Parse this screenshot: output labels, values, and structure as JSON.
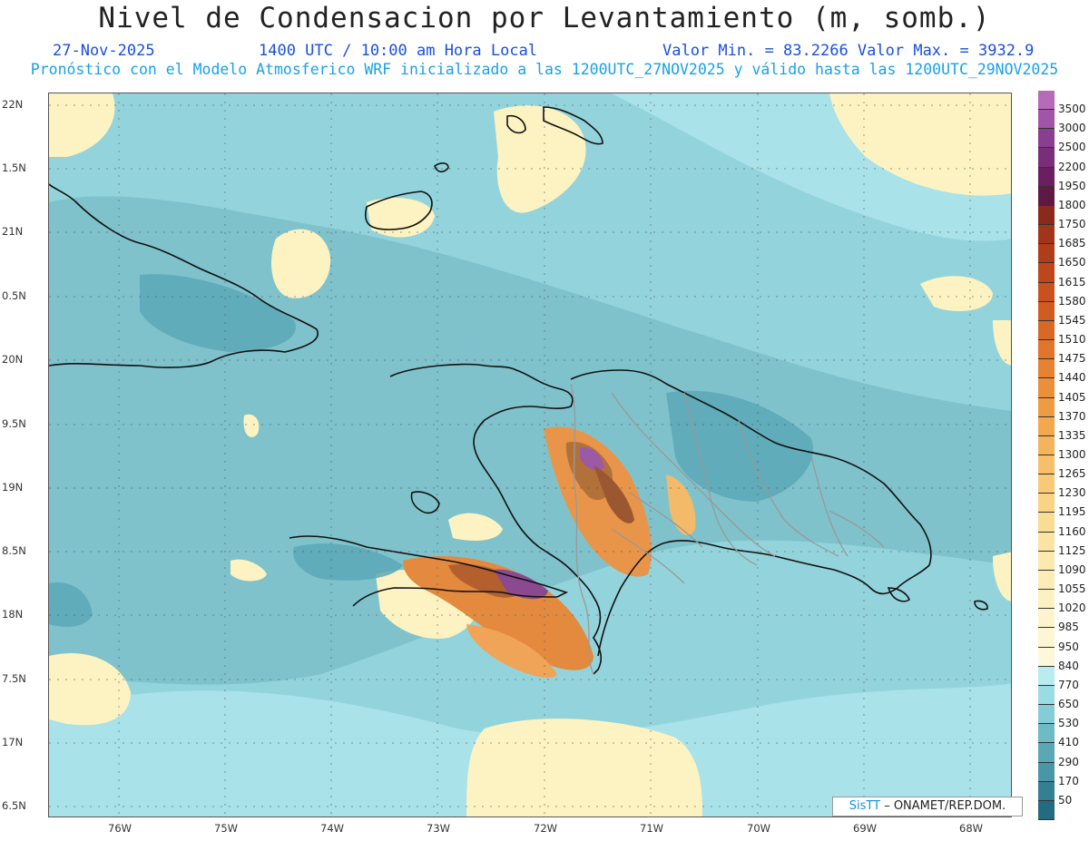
{
  "header": {
    "title": "Nivel de Condensacion por Levantamiento (m, somb.)",
    "date": "27-Nov-2025",
    "time": "1400 UTC / 10:00 am Hora Local",
    "minmax": "Valor Min. = 83.2266  Valor Max. = 3932.9",
    "forecast": "Pronóstico con el Modelo Atmosferico WRF inicializado a las 1200UTC_27NOV2025 y válido hasta las  1200UTC_29NOV2025"
  },
  "map": {
    "lat_labels": [
      "22N",
      "1.5N",
      "21N",
      "0.5N",
      "20N",
      "9.5N",
      "19N",
      "8.5N",
      "18N",
      "7.5N",
      "17N",
      "6.5N"
    ],
    "lon_labels": [
      "76W",
      "75W",
      "74W",
      "73W",
      "72W",
      "71W",
      "70W",
      "69W",
      "68W"
    ],
    "ocean_color": "#93d4dc"
  },
  "colorbar": {
    "labels": [
      "3500",
      "3000",
      "2500",
      "2200",
      "1950",
      "1800",
      "1750",
      "1685",
      "1650",
      "1615",
      "1580",
      "1545",
      "1510",
      "1475",
      "1440",
      "1405",
      "1370",
      "1335",
      "1300",
      "1265",
      "1230",
      "1195",
      "1160",
      "1125",
      "1090",
      "1055",
      "1020",
      "985",
      "950",
      "840",
      "770",
      "650",
      "530",
      "410",
      "290",
      "170",
      "50"
    ],
    "colors": [
      "#b76ab8",
      "#a254a6",
      "#8a3e8f",
      "#7a2d78",
      "#6a1f60",
      "#5e1a45",
      "#8b2a1a",
      "#a0351a",
      "#b03d1a",
      "#bd461c",
      "#c8511f",
      "#d05c22",
      "#d86826",
      "#e0752c",
      "#e68232",
      "#ea8f3a",
      "#ee9c44",
      "#f1a84f",
      "#f4b45c",
      "#f6bf69",
      "#f8ca77",
      "#f9d486",
      "#fadd95",
      "#fbe4a2",
      "#fce9ad",
      "#fcedb8",
      "#fdf1c2",
      "#fef4cb",
      "#fef6d3",
      "#fef8da",
      "#b8ecf0",
      "#9adce4",
      "#84ccd6",
      "#6ebac6",
      "#5aa8b6",
      "#4896a6",
      "#347f92",
      "#236b80"
    ]
  },
  "credit": {
    "brand": "SisTT",
    "text": " – ONAMET/REP.DOM."
  }
}
